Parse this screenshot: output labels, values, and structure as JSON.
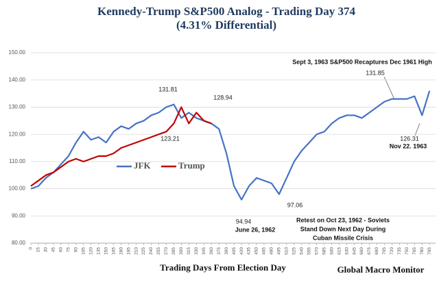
{
  "chart_data": {
    "type": "line",
    "title": "Kennedy-Trump  S&P500 Analog  - Trading Day 374",
    "subtitle": "(4.31% Differential)",
    "x_label": "Trading Days From Election Day",
    "source": "Global Macro Monitor",
    "x": [
      0,
      15,
      30,
      45,
      60,
      75,
      90,
      105,
      120,
      135,
      150,
      165,
      180,
      195,
      210,
      225,
      240,
      255,
      270,
      285,
      300,
      315,
      330,
      345,
      360,
      375,
      390,
      405,
      420,
      435,
      450,
      465,
      480,
      495,
      510,
      525,
      540,
      555,
      570,
      585,
      600,
      615,
      630,
      645,
      660,
      675,
      690,
      705,
      720,
      735,
      750,
      765,
      780,
      795
    ],
    "series": [
      {
        "name": "JFK",
        "color": "#4472c4",
        "values": [
          100,
          101,
          104,
          106,
          109,
          112,
          117,
          121,
          118,
          119,
          117,
          121,
          123,
          122,
          124,
          125,
          127,
          128,
          130,
          131,
          126,
          128,
          126,
          125,
          124,
          122,
          113,
          101,
          96,
          101,
          104,
          103,
          102,
          98,
          104,
          110,
          114,
          117,
          120,
          121,
          124,
          126,
          127,
          127,
          126,
          128,
          130,
          132,
          133,
          133,
          133,
          134,
          127,
          136
        ]
      },
      {
        "name": "Trump",
        "color": "#c00000",
        "values": [
          101,
          103,
          105,
          106,
          108,
          110,
          111,
          110,
          111,
          112,
          112,
          113,
          115,
          116,
          117,
          118,
          119,
          120,
          121,
          124,
          130,
          124,
          128,
          125,
          124,
          null,
          null,
          null,
          null,
          null,
          null,
          null,
          null,
          null,
          null,
          null,
          null,
          null,
          null,
          null,
          null,
          null,
          null,
          null,
          null,
          null,
          null,
          null,
          null,
          null,
          null,
          null,
          null,
          null
        ]
      }
    ],
    "xlim": [
      0,
      807
    ],
    "xticks": [
      0,
      15,
      30,
      45,
      60,
      75,
      90,
      105,
      120,
      135,
      150,
      165,
      180,
      195,
      210,
      225,
      240,
      255,
      270,
      285,
      300,
      315,
      330,
      345,
      360,
      375,
      390,
      405,
      420,
      435,
      450,
      465,
      480,
      495,
      510,
      525,
      540,
      555,
      570,
      585,
      600,
      615,
      630,
      645,
      660,
      675,
      690,
      705,
      720,
      735,
      750,
      765,
      780,
      795
    ],
    "ylim": [
      80,
      150
    ],
    "yticks": [
      {
        "value": 80,
        "label": "80.00"
      },
      {
        "value": 90,
        "label": "90.00"
      },
      {
        "value": 100,
        "label": "100.00"
      },
      {
        "value": 110,
        "label": "110.00"
      },
      {
        "value": 120,
        "label": "120.00"
      },
      {
        "value": 130,
        "label": "130.00"
      },
      {
        "value": 140,
        "label": "140.00"
      },
      {
        "value": 150,
        "label": "150.00"
      }
    ],
    "grid": true,
    "annotations": [
      "131.81",
      "123.21",
      "128.94",
      "94.94",
      "June 26, 1962",
      "97.06",
      "Retest on Oct 23, 1962 - Soviets",
      "Stand Down Next Day During",
      "Cuban Missile Crisis",
      "Sept 3, 1963  S&P500 Recaptures Dec 1961 High",
      "131.85",
      "126.31",
      "Nov 22. 1963"
    ]
  }
}
